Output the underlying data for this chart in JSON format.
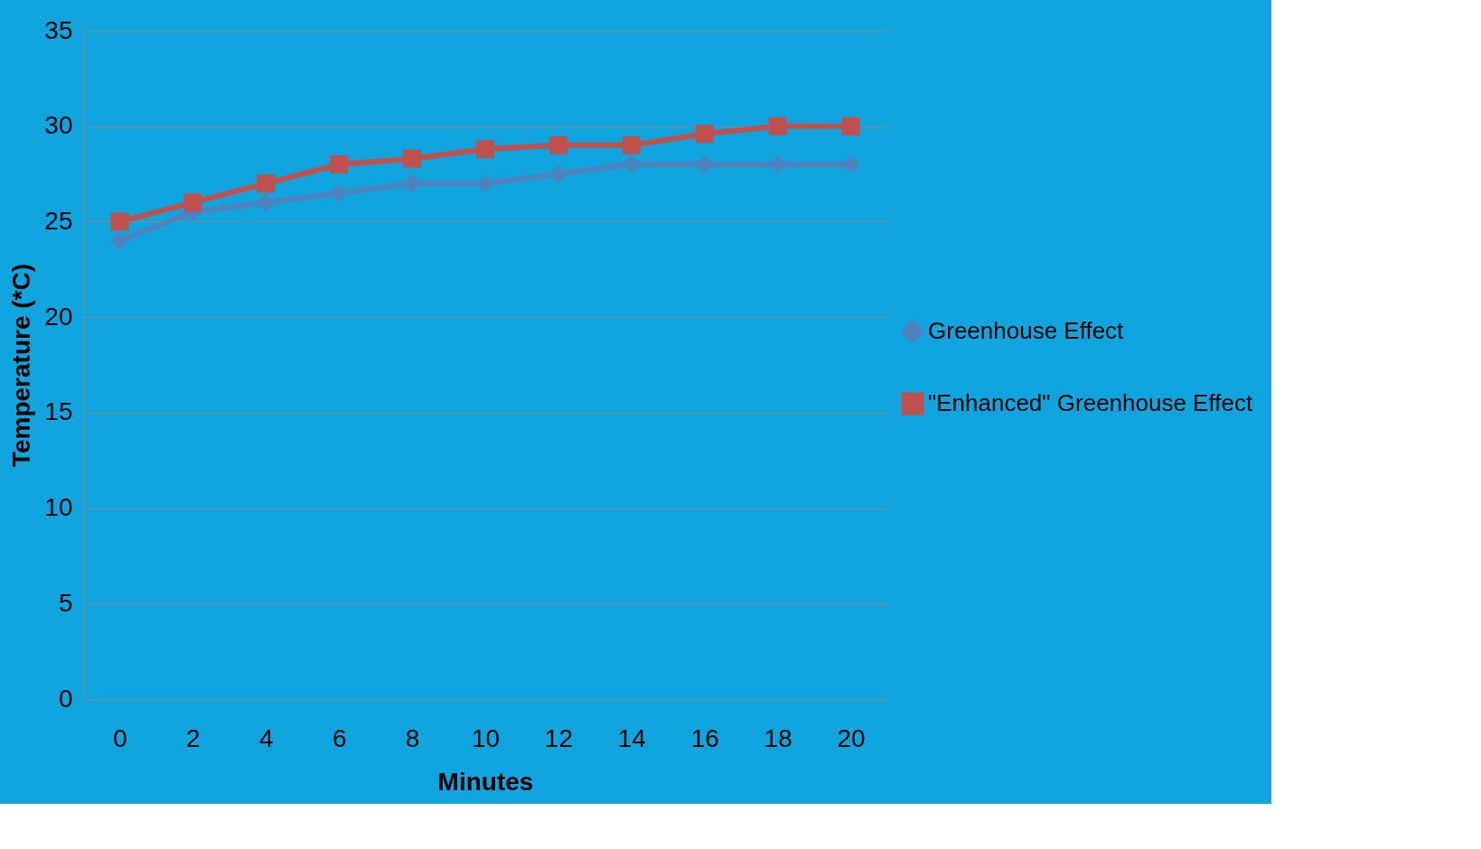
{
  "chart_data": {
    "type": "line",
    "xlabel": "Minutes",
    "ylabel": "Temperature (*C)",
    "categories": [
      "0",
      "2",
      "4",
      "6",
      "8",
      "10",
      "12",
      "14",
      "16",
      "18",
      "20"
    ],
    "series": [
      {
        "name": "Greenhouse Effect",
        "color": "#4f81bd",
        "marker": "diamond",
        "values": [
          24,
          25.5,
          26,
          26.5,
          27,
          27,
          27.5,
          28,
          28,
          28,
          28
        ]
      },
      {
        "name": "\"Enhanced\" Greenhouse Effect",
        "color": "#c0504d",
        "marker": "square",
        "values": [
          25,
          26,
          27,
          28,
          28.3,
          28.8,
          29,
          29,
          29.6,
          30,
          30
        ]
      }
    ],
    "ylim": [
      0,
      35
    ],
    "yticks": [
      0,
      5,
      10,
      15,
      20,
      25,
      30,
      35
    ],
    "grid": "y",
    "legend": "right",
    "line_style": "solid"
  }
}
